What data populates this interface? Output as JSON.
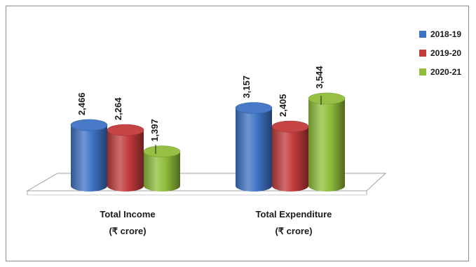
{
  "chart_data": {
    "type": "bar",
    "categories": [
      {
        "line1": "Total Income",
        "line2": "(₹ crore)"
      },
      {
        "line1": "Total Expenditure",
        "line2": "(₹ crore)"
      }
    ],
    "series": [
      {
        "name": "2018-19",
        "color": "#3f73c4",
        "values": [
          2466,
          3157
        ],
        "labels": [
          "2,466",
          "3,157"
        ]
      },
      {
        "name": "2019-20",
        "color": "#c23b3b",
        "values": [
          2264,
          2405
        ],
        "labels": [
          "2,264",
          "2,405"
        ]
      },
      {
        "name": "2020-21",
        "color": "#8fbd3a",
        "values": [
          1397,
          3544
        ],
        "labels": [
          "1,397",
          "3,544"
        ]
      }
    ],
    "ylim": [
      0,
      3600
    ],
    "grid": false,
    "legend": "top-right",
    "style": "3d-cylinder"
  }
}
